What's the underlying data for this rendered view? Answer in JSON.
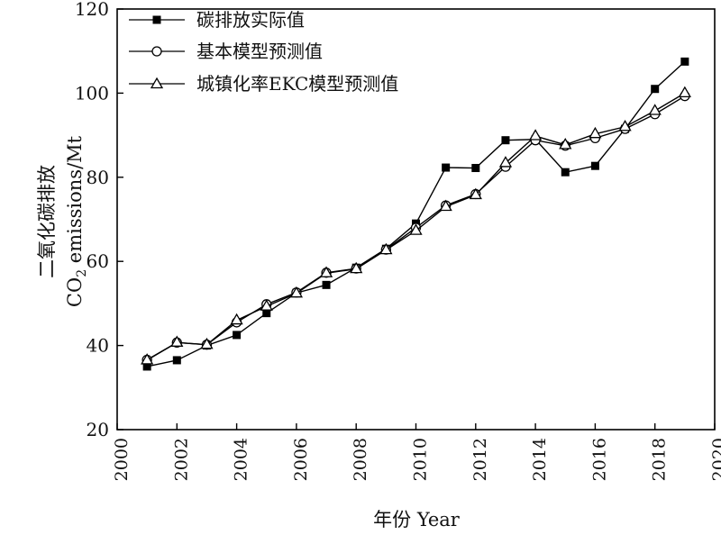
{
  "chart_data": {
    "type": "line",
    "xlabel": "年份 Year",
    "ylabel_line1": "二氧化碳排放",
    "ylabel_line2_pre": "CO",
    "ylabel_line2_sub": "2",
    "ylabel_line2_post": " emissions/Mt",
    "xlim": [
      2000,
      2020
    ],
    "ylim": [
      20,
      120
    ],
    "xticks": [
      2000,
      2002,
      2004,
      2006,
      2008,
      2010,
      2012,
      2014,
      2016,
      2018,
      2020
    ],
    "yticks": [
      20,
      40,
      60,
      80,
      100,
      120
    ],
    "grid": false,
    "legend_position": "top-left",
    "x": [
      2001,
      2002,
      2003,
      2004,
      2005,
      2006,
      2007,
      2008,
      2009,
      2010,
      2011,
      2012,
      2013,
      2014,
      2015,
      2016,
      2017,
      2018,
      2019
    ],
    "series": [
      {
        "name": "碳排放实际值",
        "marker": "filled-square",
        "values": [
          35.0,
          36.5,
          40.0,
          42.5,
          47.7,
          52.5,
          54.4,
          58.5,
          63.0,
          69.0,
          82.3,
          82.2,
          88.8,
          89.0,
          81.2,
          82.7,
          91.5,
          101.0,
          107.5
        ]
      },
      {
        "name": "基本模型预测值",
        "marker": "hollow-circle",
        "values": [
          36.6,
          40.7,
          40.2,
          45.5,
          49.8,
          52.6,
          57.3,
          58.3,
          62.8,
          68.0,
          73.3,
          76.0,
          82.5,
          88.8,
          87.5,
          89.3,
          91.5,
          95.0,
          99.3
        ]
      },
      {
        "name": "城镇化率EKC模型预测值",
        "marker": "hollow-triangle",
        "values": [
          36.5,
          40.7,
          40.2,
          46.0,
          49.3,
          52.4,
          57.2,
          58.2,
          62.7,
          67.3,
          73.0,
          75.8,
          83.4,
          89.8,
          87.7,
          90.3,
          92.0,
          95.8,
          100.0
        ]
      }
    ]
  }
}
